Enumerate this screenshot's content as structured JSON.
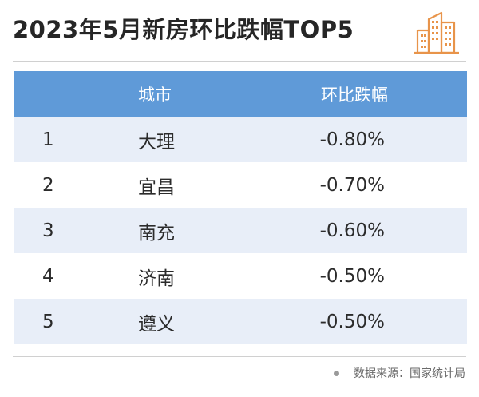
{
  "title": "2023年5月新房环比跌幅TOP5",
  "logo_icon": "building-icon",
  "table": {
    "headers": {
      "rank": "",
      "city": "城市",
      "value": "环比跌幅"
    },
    "rows": [
      {
        "rank": "1",
        "city": "大理",
        "value": "-0.80%"
      },
      {
        "rank": "2",
        "city": "宜昌",
        "value": "-0.70%"
      },
      {
        "rank": "3",
        "city": "南充",
        "value": "-0.60%"
      },
      {
        "rank": "4",
        "city": "济南",
        "value": "-0.50%"
      },
      {
        "rank": "5",
        "city": "遵义",
        "value": "-0.50%"
      }
    ]
  },
  "source": "数据来源：国家统计局",
  "colors": {
    "header_bg": "#5f9ad8",
    "alt_row_bg": "#e8eef8",
    "logo_orange": "#e8944a"
  }
}
